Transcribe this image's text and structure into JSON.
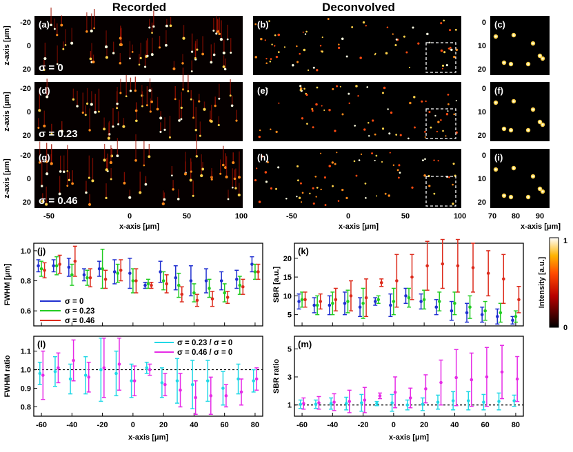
{
  "titles": {
    "recorded": "Recorded",
    "deconvolved": "Deconvolved"
  },
  "image_grid": {
    "rows": [
      {
        "panels": [
          "(a)",
          "(b)",
          "(c)"
        ],
        "sigma_label": "σ = 0"
      },
      {
        "panels": [
          "(d)",
          "(e)",
          "(f)"
        ],
        "sigma_label": "σ = 0.23"
      },
      {
        "panels": [
          "(g)",
          "(h)",
          "(i)"
        ],
        "sigma_label": "σ = 0.46"
      }
    ],
    "zaxis_label": "z-axis [μm]",
    "xaxis_label": "x-axis [μm]",
    "z_ticks": [
      "-20",
      "0",
      "20"
    ],
    "zoom_z_ticks": [
      "0",
      "10",
      "20"
    ],
    "x_ticks": [
      "-50",
      "0",
      "50",
      "100"
    ],
    "zoom_x_ticks": [
      "70",
      "80",
      "90"
    ]
  },
  "colorbar": {
    "label": "Intensity [a.u.]",
    "max": "1",
    "min": "0"
  },
  "chart_data": [
    {
      "panel": "(j)",
      "type": "scatter",
      "error_bars": true,
      "xlabel": "x-axis [μm]",
      "ylabel": "FWHM [μm]",
      "xlim": [
        -65,
        85
      ],
      "ylim": [
        0.5,
        1.05
      ],
      "yticks": [
        "0.6",
        "0.8",
        "1.0"
      ],
      "series": [
        {
          "name": "σ = 0",
          "color": "#1f2fd0",
          "x": [
            -60,
            -50,
            -40,
            -30,
            -20,
            -10,
            0,
            10,
            20,
            30,
            40,
            50,
            60,
            70,
            80
          ],
          "y": [
            0.9,
            0.9,
            0.89,
            0.84,
            0.88,
            0.86,
            0.85,
            0.77,
            0.86,
            0.82,
            0.8,
            0.8,
            0.8,
            0.81,
            0.91
          ],
          "err": [
            0.04,
            0.04,
            0.06,
            0.04,
            0.05,
            0.08,
            0.1,
            0.02,
            0.07,
            0.08,
            0.1,
            0.08,
            0.06,
            0.06,
            0.05
          ]
        },
        {
          "name": "σ = 0.23",
          "color": "#22cc22",
          "x": [
            -60,
            -50,
            -40,
            -30,
            -20,
            -10,
            0,
            10,
            20,
            30,
            40,
            50,
            60,
            70,
            80
          ],
          "y": [
            0.88,
            0.9,
            0.84,
            0.82,
            0.88,
            0.85,
            0.8,
            0.78,
            0.8,
            0.77,
            0.72,
            0.75,
            0.72,
            0.77,
            0.86
          ],
          "err": [
            0.05,
            0.06,
            0.07,
            0.05,
            0.13,
            0.06,
            0.08,
            0.03,
            0.06,
            0.08,
            0.06,
            0.06,
            0.06,
            0.06,
            0.05
          ]
        },
        {
          "name": "σ = 0.46",
          "color": "#dd2b1c",
          "x": [
            -60,
            -50,
            -40,
            -30,
            -20,
            -10,
            0,
            10,
            20,
            30,
            40,
            50,
            60,
            70,
            80
          ],
          "y": [
            0.87,
            0.91,
            0.93,
            0.82,
            0.81,
            0.87,
            0.8,
            0.77,
            0.78,
            0.71,
            0.67,
            0.68,
            0.69,
            0.76,
            0.86
          ],
          "err": [
            0.05,
            0.06,
            0.1,
            0.06,
            0.06,
            0.07,
            0.08,
            0.02,
            0.06,
            0.05,
            0.04,
            0.05,
            0.04,
            0.05,
            0.05
          ]
        }
      ]
    },
    {
      "panel": "(k)",
      "type": "scatter",
      "error_bars": true,
      "xlabel": "x-axis [μm]",
      "ylabel": "SBR [a.u.]",
      "xlim": [
        -65,
        85
      ],
      "ylim": [
        2,
        24
      ],
      "yticks": [
        "5",
        "10",
        "15",
        "20"
      ],
      "series": [
        {
          "name": "σ = 0",
          "color": "#1f2fd0",
          "x": [
            -60,
            -50,
            -40,
            -30,
            -20,
            -10,
            0,
            10,
            20,
            30,
            40,
            50,
            60,
            70,
            80
          ],
          "y": [
            8.5,
            7.5,
            7.5,
            8.0,
            7.0,
            8.5,
            7.5,
            10.0,
            8.5,
            7.0,
            6.0,
            5.5,
            5.0,
            4.5,
            3.5
          ],
          "err": [
            2.0,
            2.0,
            2.5,
            3.0,
            2.5,
            1.0,
            3.0,
            2.0,
            2.0,
            2.0,
            2.5,
            2.5,
            2.0,
            2.0,
            1.0
          ]
        },
        {
          "name": "σ = 0.23",
          "color": "#22cc22",
          "x": [
            -60,
            -50,
            -40,
            -30,
            -20,
            -10,
            0,
            10,
            20,
            30,
            40,
            50,
            60,
            70,
            80
          ],
          "y": [
            9.0,
            7.5,
            8.0,
            8.5,
            8.0,
            9.0,
            8.5,
            9.5,
            9.0,
            8.5,
            8.0,
            7.0,
            6.0,
            5.5,
            4.5
          ],
          "err": [
            2.0,
            2.5,
            3.0,
            3.0,
            4.0,
            1.0,
            3.5,
            2.5,
            2.5,
            2.5,
            3.0,
            3.0,
            2.5,
            2.5,
            1.5
          ]
        },
        {
          "name": "σ = 0.46",
          "color": "#dd2b1c",
          "x": [
            -60,
            -50,
            -40,
            -30,
            -20,
            -10,
            0,
            10,
            20,
            30,
            40,
            50,
            60,
            70,
            80
          ],
          "y": [
            9.0,
            8.5,
            9.0,
            10.0,
            9.5,
            13.5,
            14.0,
            15.0,
            18.0,
            18.5,
            18.0,
            17.5,
            16.0,
            14.5,
            9.0
          ],
          "err": [
            2.0,
            2.0,
            3.0,
            4.0,
            5.0,
            1.0,
            7.0,
            6.0,
            6.5,
            6.5,
            7.0,
            6.5,
            6.0,
            6.5,
            3.5
          ]
        }
      ]
    },
    {
      "panel": "(l)",
      "type": "scatter",
      "error_bars": true,
      "xlabel": "x-axis [μm]",
      "ylabel": "FWHM ratio",
      "xlim": [
        -65,
        85
      ],
      "ylim": [
        0.75,
        1.18
      ],
      "xticks": [
        "-60",
        "-40",
        "-20",
        "0",
        "20",
        "40",
        "60",
        "80"
      ],
      "yticks": [
        "0.8",
        "0.9",
        "1.0",
        "1.1"
      ],
      "reference_line": 1.0,
      "series": [
        {
          "name": "σ = 0.23 / σ = 0",
          "color": "#22d8e6",
          "x": [
            -60,
            -50,
            -40,
            -30,
            -20,
            -10,
            0,
            10,
            20,
            30,
            40,
            50,
            60,
            70,
            80
          ],
          "y": [
            0.98,
            0.99,
            0.95,
            0.97,
            1.0,
            0.98,
            0.94,
            1.01,
            0.93,
            0.94,
            0.92,
            0.94,
            0.9,
            0.95,
            0.94
          ],
          "err": [
            0.06,
            0.08,
            0.08,
            0.1,
            0.17,
            0.12,
            0.09,
            0.03,
            0.08,
            0.12,
            0.13,
            0.11,
            0.09,
            0.08,
            0.06
          ]
        },
        {
          "name": "σ = 0.46 / σ = 0",
          "color": "#e62be6",
          "x": [
            -60,
            -50,
            -40,
            -30,
            -20,
            -10,
            0,
            10,
            20,
            30,
            40,
            50,
            60,
            70,
            80
          ],
          "y": [
            0.97,
            1.01,
            1.05,
            0.96,
            1.01,
            1.03,
            0.94,
            1.0,
            0.92,
            0.89,
            0.85,
            0.86,
            0.86,
            0.88,
            0.95
          ],
          "err": [
            0.13,
            0.08,
            0.11,
            0.08,
            0.16,
            0.14,
            0.08,
            0.03,
            0.06,
            0.09,
            0.09,
            0.1,
            0.06,
            0.07,
            0.06
          ]
        }
      ]
    },
    {
      "panel": "(m)",
      "type": "scatter",
      "error_bars": true,
      "xlabel": "x-axis [μm]",
      "ylabel": "SBR ratio",
      "xlim": [
        -65,
        85
      ],
      "ylim": [
        0.2,
        5.9
      ],
      "xticks": [
        "-60",
        "-40",
        "-20",
        "0",
        "20",
        "40",
        "60",
        "80"
      ],
      "yticks": [
        "1",
        "3",
        "5"
      ],
      "reference_line": 1.0,
      "series": [
        {
          "name": "σ = 0.23 / σ = 0",
          "color": "#22d8e6",
          "x": [
            -60,
            -50,
            -40,
            -30,
            -20,
            -10,
            0,
            10,
            20,
            30,
            40,
            50,
            60,
            70,
            80
          ],
          "y": [
            1.05,
            1.05,
            1.1,
            1.1,
            1.15,
            1.1,
            1.15,
            1.0,
            1.05,
            1.2,
            1.3,
            1.3,
            1.2,
            1.25,
            1.3
          ],
          "err": [
            0.3,
            0.3,
            0.4,
            0.45,
            0.6,
            0.15,
            0.6,
            0.35,
            0.45,
            0.5,
            0.65,
            0.65,
            0.55,
            0.6,
            0.4
          ]
        },
        {
          "name": "σ = 0.46 / σ = 0",
          "color": "#e62be6",
          "x": [
            -60,
            -50,
            -40,
            -30,
            -20,
            -10,
            0,
            10,
            20,
            30,
            40,
            50,
            60,
            70,
            80
          ],
          "y": [
            1.1,
            1.15,
            1.2,
            1.25,
            1.35,
            1.65,
            1.9,
            1.5,
            2.15,
            2.6,
            2.95,
            2.8,
            3.0,
            3.35,
            2.85
          ],
          "err": [
            0.4,
            0.45,
            0.6,
            0.8,
            0.9,
            0.2,
            1.1,
            0.7,
            1.0,
            1.6,
            2.0,
            1.9,
            2.1,
            1.9,
            1.6
          ]
        }
      ]
    }
  ]
}
